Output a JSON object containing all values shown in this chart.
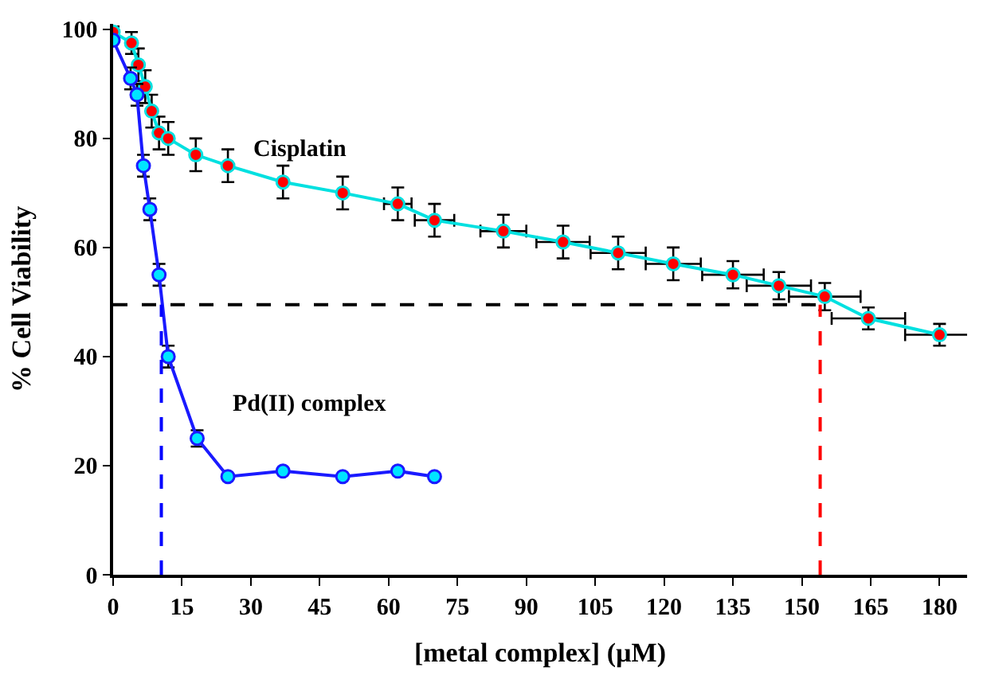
{
  "chart_data": {
    "type": "line",
    "xlabel": "[metal complex] (µM)",
    "ylabel": "% Cell Viability",
    "xlim": [
      0,
      186
    ],
    "xticks": [
      0,
      15,
      30,
      45,
      60,
      75,
      90,
      105,
      120,
      135,
      150,
      165,
      180
    ],
    "ylim": [
      0,
      101
    ],
    "yticks": [
      0,
      20,
      40,
      60,
      80,
      100
    ],
    "legend": false,
    "marker": "circle",
    "line_style": "solid",
    "series": [
      {
        "name": "Cisplatin",
        "color": "#00e0e0",
        "colors": [
          "#ff0000",
          "#ff0000",
          "#ff0000",
          "#ff0000",
          "#ff0000",
          "#ff0000",
          "#ff0000",
          "#ff0000",
          "#ff0000",
          "#ff0000",
          "#ff0000",
          "#ff0000",
          "#ff0000",
          "#ff0000",
          "#ff0000",
          "#ff0000",
          "#ff0000",
          "#ff0000",
          "#ff0000",
          "#ff0000",
          "#ff0000",
          "#ff0000"
        ],
        "x": [
          0,
          4,
          5.5,
          7,
          8.4,
          10,
          12,
          18,
          25,
          37,
          50,
          62,
          70,
          85,
          98,
          110,
          122,
          135,
          145,
          155,
          164.5,
          180
        ],
        "values": [
          99.5,
          97.5,
          93.5,
          89.5,
          85,
          81,
          80,
          77,
          75,
          72,
          70,
          68,
          65,
          63,
          61,
          59,
          57,
          55,
          53,
          51,
          47,
          44
        ],
        "errors": [
          1,
          2,
          3,
          3,
          3,
          3,
          3,
          3,
          3,
          3,
          3,
          3,
          3,
          3,
          3,
          3,
          3,
          2.5,
          2.5,
          2.5,
          2,
          2
        ],
        "xerrors": [
          null,
          null,
          null,
          null,
          null,
          null,
          null,
          null,
          null,
          null,
          null,
          3,
          4.3,
          5,
          5.8,
          6,
          6,
          6.7,
          7,
          7.8,
          8,
          7.5
        ]
      },
      {
        "name": "Pd(II) complex",
        "color": "#1a1aff",
        "colors": [
          "#00e5ff",
          "#00e5ff",
          "#00e5ff",
          "#00e5ff",
          "#00e5ff",
          "#00e5ff",
          "#00e5ff",
          "#00e5ff",
          "#00e5ff",
          "#00e5ff",
          "#00e5ff",
          "#00e5ff",
          "#00e5ff"
        ],
        "x": [
          0,
          3.8,
          5.2,
          6.6,
          8,
          10,
          12,
          18.3,
          25,
          37,
          50,
          62,
          70
        ],
        "values": [
          98,
          91,
          88,
          75,
          67,
          55,
          40,
          25,
          18,
          19,
          18,
          19,
          18
        ],
        "errors": [
          null,
          2,
          2,
          2,
          2,
          2,
          2,
          1.5,
          null,
          null,
          null,
          null,
          null
        ]
      }
    ],
    "ref_lines": [
      {
        "axis": "y",
        "value": 49.5,
        "color": "#000000",
        "line_style": "dashed"
      },
      {
        "axis": "x",
        "value": 10.5,
        "color": "#0000ff",
        "line_style": "dashed"
      },
      {
        "axis": "x",
        "value": 154,
        "color": "#ff0000",
        "line_style": "dashed"
      }
    ]
  }
}
